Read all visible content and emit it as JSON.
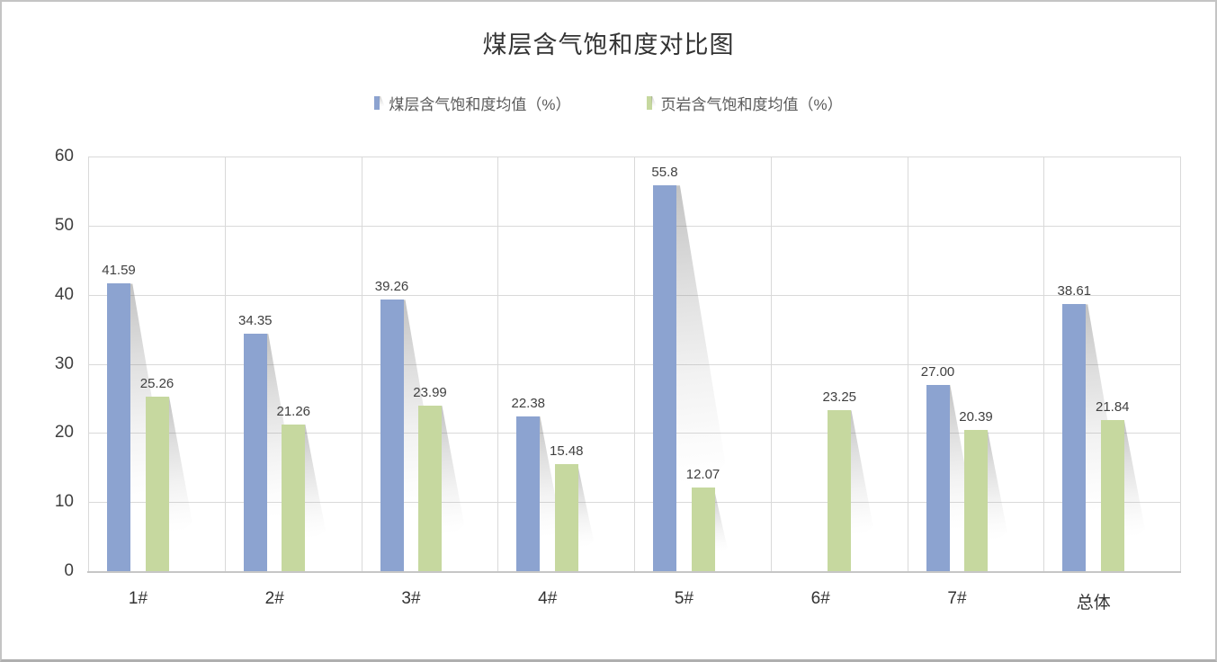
{
  "title": "煤层含气饱和度对比图",
  "legend": [
    {
      "label": "煤层含气饱和度均值（%）",
      "color": "#8CA3D0"
    },
    {
      "label": "页岩含气饱和度均值（%）",
      "color": "#C6D89F"
    }
  ],
  "colors": {
    "bar_coal": "#8CA3D0",
    "bar_shale": "#C6D89F",
    "gridline": "#D9D9D9",
    "axis_line": "#C6C6C6",
    "title_text": "#333333",
    "tick_text": "#404040",
    "value_text": "#404040",
    "legend_text": "#595959",
    "frame_border": "#C4C4C4"
  },
  "chart_data": {
    "type": "bar",
    "title": "煤层含气饱和度对比图",
    "categories": [
      "1#",
      "2#",
      "3#",
      "4#",
      "5#",
      "6#",
      "7#",
      "总体"
    ],
    "series": [
      {
        "name": "煤层含气饱和度均值（%）",
        "color": "#8CA3D0",
        "values": [
          41.59,
          34.35,
          39.26,
          22.38,
          55.8,
          null,
          27.0,
          38.61
        ],
        "labels": [
          "41.59",
          "34.35",
          "39.26",
          "22.38",
          "55.8",
          "",
          "27.00",
          "38.61"
        ]
      },
      {
        "name": "页岩含气饱和度均值（%）",
        "color": "#C6D89F",
        "values": [
          25.26,
          21.26,
          23.99,
          15.48,
          12.07,
          23.25,
          20.39,
          21.84
        ],
        "labels": [
          "25.26",
          "21.26",
          "23.99",
          "15.48",
          "12.07",
          "23.25",
          "20.39",
          "21.84"
        ]
      }
    ],
    "y_axis": {
      "min": 0,
      "max": 60,
      "step": 10,
      "ticks": [
        "0",
        "10",
        "20",
        "30",
        "40",
        "50",
        "60"
      ]
    },
    "grid": true,
    "vertical_gridlines": true,
    "legend_position": "top",
    "xlabel": "",
    "ylabel": ""
  }
}
